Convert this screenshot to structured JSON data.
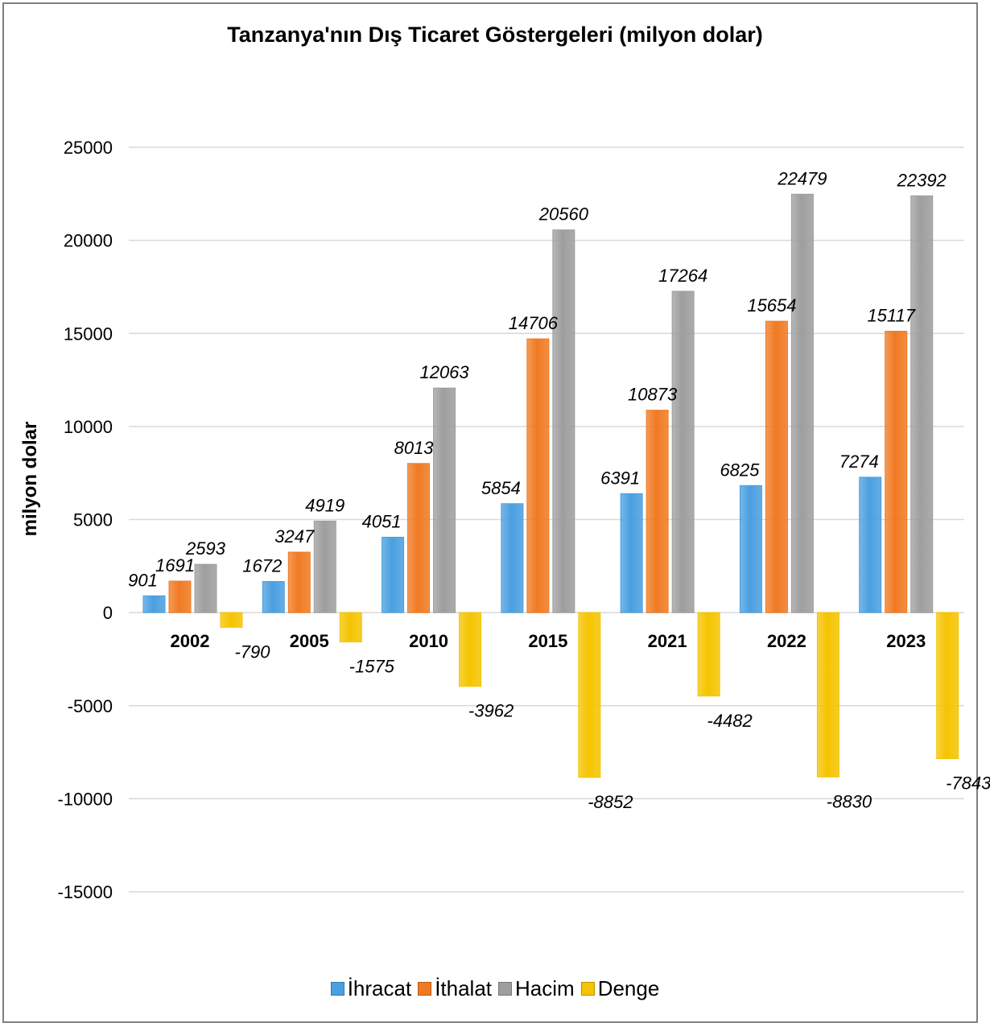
{
  "chart_data": {
    "type": "bar",
    "title": "Tanzanya'nın Dış Ticaret Göstergeleri  (milyon dolar)",
    "ylabel": "milyon dolar",
    "xlabel": "",
    "categories": [
      "2002",
      "2005",
      "2010",
      "2015",
      "2021",
      "2022",
      "2023"
    ],
    "series": [
      {
        "name": "İhracat",
        "color": "#4a9fe0",
        "values": [
          901,
          1672,
          4051,
          5854,
          6391,
          6825,
          7274
        ]
      },
      {
        "name": "İthalat",
        "color": "#f07a22",
        "values": [
          1691,
          3247,
          8013,
          14706,
          10873,
          15654,
          15117
        ]
      },
      {
        "name": "Hacim",
        "color": "#9e9e9e",
        "values": [
          2593,
          4919,
          12063,
          20560,
          17264,
          22479,
          22392
        ]
      },
      {
        "name": "Denge",
        "color": "#f5c400",
        "values": [
          -790,
          -1575,
          -3962,
          -8852,
          -4482,
          -8830,
          -7843
        ]
      }
    ],
    "ylim": [
      -15000,
      25000
    ],
    "yticks": [
      25000,
      20000,
      15000,
      10000,
      5000,
      0,
      -5000,
      -10000,
      -15000
    ],
    "grid": true,
    "legend": "bottom",
    "data_labels": true
  }
}
